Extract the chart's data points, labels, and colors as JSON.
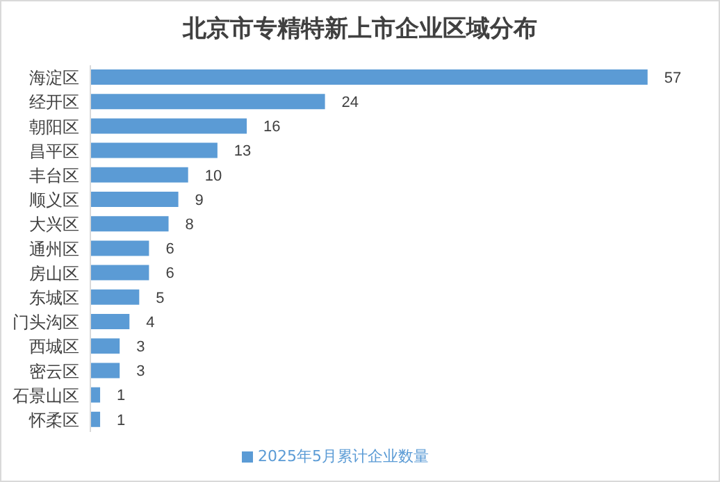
{
  "chart_data": {
    "type": "bar",
    "orientation": "horizontal",
    "title": "北京市专精特新上市企业区域分布",
    "categories": [
      "海淀区",
      "经开区",
      "朝阳区",
      "昌平区",
      "丰台区",
      "顺义区",
      "大兴区",
      "通州区",
      "房山区",
      "东城区",
      "门头沟区",
      "西城区",
      "密云区",
      "石景山区",
      "怀柔区"
    ],
    "series": [
      {
        "name": "2025年5月累计企业数量",
        "color": "#5b9bd5",
        "values": [
          57,
          24,
          16,
          13,
          10,
          9,
          8,
          6,
          6,
          5,
          4,
          3,
          3,
          1,
          1
        ]
      }
    ],
    "data_labels": true,
    "legend": "bottom",
    "tick_labels": "y"
  }
}
